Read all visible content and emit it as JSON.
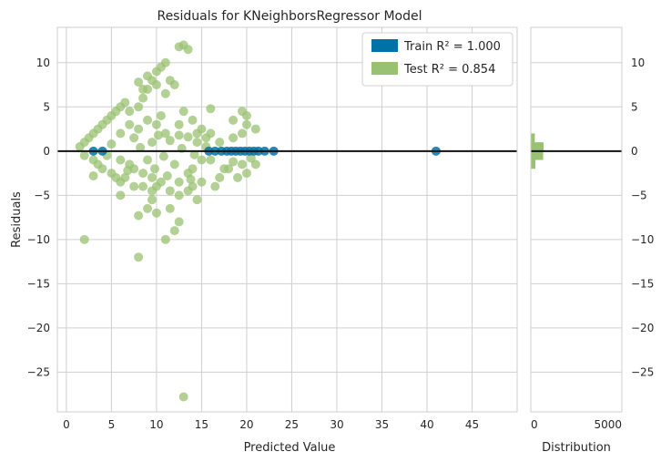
{
  "chart_data": {
    "type": "scatter",
    "title": "Residuals for KNeighborsRegressor Model",
    "xlabel": "Predicted Value",
    "ylabel": "Residuals",
    "xlim": [
      -1,
      50
    ],
    "ylim": [
      -29.5,
      14
    ],
    "xticks": [
      0,
      5,
      10,
      15,
      20,
      25,
      30,
      35,
      40,
      45
    ],
    "yticks": [
      10,
      5,
      0,
      -5,
      -10,
      -15,
      -20,
      -25
    ],
    "grid": true,
    "reference_line_y": 0,
    "colors": {
      "train": "#0072a8",
      "test": "#9ac171",
      "zero_line": "#111111",
      "grid": "#cfcfcf"
    },
    "legend": {
      "placement": "top-right",
      "entries": [
        {
          "key": "train",
          "text": "Train R² = 1.000"
        },
        {
          "key": "test",
          "text": "Test R² = 0.854"
        }
      ]
    },
    "series": [
      {
        "name": "Train R² = 1.000",
        "key": "train",
        "points": [
          [
            3,
            0
          ],
          [
            4,
            0
          ],
          [
            15.8,
            0
          ],
          [
            16.5,
            0
          ],
          [
            17.2,
            0
          ],
          [
            17.8,
            0
          ],
          [
            18.3,
            0
          ],
          [
            18.8,
            0
          ],
          [
            19.3,
            0
          ],
          [
            19.8,
            0
          ],
          [
            20.3,
            0
          ],
          [
            20.8,
            0
          ],
          [
            21.3,
            0
          ],
          [
            22,
            0
          ],
          [
            23,
            0
          ],
          [
            41,
            0
          ]
        ]
      },
      {
        "name": "Test R² = 0.854",
        "key": "test",
        "points": [
          [
            1.5,
            0.5
          ],
          [
            2,
            1
          ],
          [
            2.5,
            1.5
          ],
          [
            3,
            2
          ],
          [
            3.5,
            2.5
          ],
          [
            4,
            3
          ],
          [
            4.5,
            3.5
          ],
          [
            5,
            4
          ],
          [
            5.5,
            4.5
          ],
          [
            6,
            5
          ],
          [
            6.5,
            5.5
          ],
          [
            7,
            4.5
          ],
          [
            2,
            -0.5
          ],
          [
            3,
            -1
          ],
          [
            3.5,
            -1.5
          ],
          [
            4,
            -2
          ],
          [
            5,
            -2.5
          ],
          [
            5.5,
            -3
          ],
          [
            6,
            -3.5
          ],
          [
            3,
            -2.8
          ],
          [
            2,
            -10
          ],
          [
            8,
            -12
          ],
          [
            13,
            -27.8
          ],
          [
            8,
            -7.3
          ],
          [
            9,
            -6.5
          ],
          [
            10,
            -7
          ],
          [
            9.5,
            -5.5
          ],
          [
            11,
            -10
          ],
          [
            12,
            -9
          ],
          [
            12.5,
            -8
          ],
          [
            10,
            -4
          ],
          [
            11.5,
            -6.5
          ],
          [
            12.5,
            -5
          ],
          [
            13.5,
            -4.5
          ],
          [
            14,
            -4
          ],
          [
            15,
            -3.5
          ],
          [
            14.5,
            -5.5
          ],
          [
            16.5,
            -4
          ],
          [
            17,
            -3
          ],
          [
            18,
            -2
          ],
          [
            19,
            -3
          ],
          [
            20,
            -2.5
          ],
          [
            19.5,
            -1.5
          ],
          [
            18.5,
            1.5
          ],
          [
            19.5,
            2
          ],
          [
            20,
            3
          ],
          [
            21,
            2.5
          ],
          [
            16,
            4.8
          ],
          [
            18.5,
            3.5
          ],
          [
            19.5,
            4.5
          ],
          [
            20,
            4
          ],
          [
            16,
            2
          ],
          [
            17,
            1
          ],
          [
            15.5,
            1.5
          ],
          [
            14.5,
            2
          ],
          [
            15,
            2.5
          ],
          [
            8,
            5
          ],
          [
            8.5,
            6
          ],
          [
            9,
            7
          ],
          [
            9.5,
            8
          ],
          [
            10,
            9
          ],
          [
            10.5,
            9.5
          ],
          [
            11,
            10
          ],
          [
            9,
            8.5
          ],
          [
            10,
            7.5
          ],
          [
            8.5,
            7
          ],
          [
            8,
            7.8
          ],
          [
            11,
            6.5
          ],
          [
            13,
            12
          ],
          [
            13.5,
            11.5
          ],
          [
            12.5,
            11.8
          ],
          [
            12,
            7.5
          ],
          [
            11.5,
            8
          ],
          [
            13,
            4.5
          ],
          [
            12.5,
            3
          ],
          [
            11,
            2
          ],
          [
            14,
            3.5
          ],
          [
            14.5,
            1
          ],
          [
            15.5,
            0.5
          ],
          [
            13.5,
            -2.5
          ],
          [
            12.5,
            -3.5
          ],
          [
            11.5,
            -4.5
          ],
          [
            10.5,
            -3.5
          ],
          [
            9.5,
            -3
          ],
          [
            8.5,
            -2.5
          ],
          [
            7.5,
            -2
          ],
          [
            7,
            -1.5
          ],
          [
            6.5,
            -3
          ],
          [
            6,
            -5
          ],
          [
            7.5,
            -4
          ],
          [
            8.5,
            -4
          ],
          [
            9.5,
            -4.5
          ],
          [
            6,
            -1
          ],
          [
            9,
            -1
          ],
          [
            12,
            -1.5
          ],
          [
            14,
            -2
          ],
          [
            16,
            -1
          ],
          [
            17.5,
            -2
          ],
          [
            18.5,
            -1.2
          ],
          [
            20.5,
            -0.8
          ],
          [
            21,
            -1.5
          ],
          [
            8,
            2.5
          ],
          [
            9,
            3.5
          ],
          [
            10,
            3
          ],
          [
            10.5,
            4
          ],
          [
            7,
            3
          ],
          [
            6,
            2
          ],
          [
            7.5,
            1.5
          ],
          [
            9.5,
            1
          ],
          [
            11.5,
            1.2
          ],
          [
            12.5,
            1.8
          ],
          [
            13.5,
            1.6
          ],
          [
            15,
            -1
          ],
          [
            8.2,
            0.4
          ],
          [
            10.8,
            -0.6
          ],
          [
            12.8,
            0.3
          ],
          [
            14.2,
            -0.4
          ],
          [
            5,
            0.8
          ],
          [
            4.5,
            -0.5
          ],
          [
            6.8,
            -2.2
          ],
          [
            11.2,
            -2.8
          ],
          [
            13.8,
            -3.2
          ],
          [
            9.8,
            -2
          ],
          [
            10.2,
            1.8
          ]
        ]
      }
    ],
    "distribution": {
      "xlabel": "Distribution",
      "xlim": [
        0,
        5000
      ],
      "xticks": [
        0,
        5000
      ],
      "yticks": [
        10,
        5,
        0,
        -5,
        -10,
        -15,
        -20,
        -25
      ],
      "bins": [
        {
          "y0": -2,
          "y1": -1,
          "count": 250
        },
        {
          "y0": -1,
          "y1": 0,
          "count": 680
        },
        {
          "y0": 0,
          "y1": 1,
          "count": 700
        },
        {
          "y0": 1,
          "y1": 2,
          "count": 220
        }
      ]
    }
  }
}
